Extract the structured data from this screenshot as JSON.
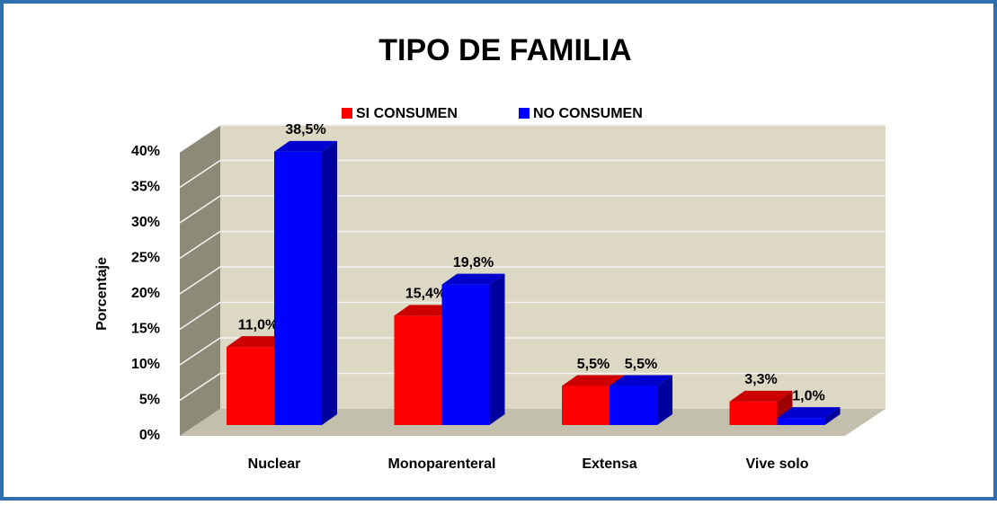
{
  "chart_data": {
    "type": "bar3d",
    "title": "TIPO DE FAMILIA",
    "y_label": "Porcentaje",
    "categories": [
      "Nuclear",
      "Monoparenteral",
      "Extensa",
      "Vive solo"
    ],
    "series": [
      {
        "name": "SI CONSUMEN",
        "color": "#ff0000",
        "values": [
          11.0,
          15.4,
          5.5,
          3.3
        ],
        "value_labels": [
          "11,0%",
          "15,4%",
          "5,5%",
          "3,3%"
        ]
      },
      {
        "name": "NO CONSUMEN",
        "color": "#0000ff",
        "values": [
          38.5,
          19.8,
          5.5,
          1.0
        ],
        "value_labels": [
          "38,5%",
          "19,8%",
          "5,5%",
          "1,0%"
        ]
      }
    ],
    "ylim": [
      0,
      40
    ],
    "yticks": [
      {
        "value": 0,
        "label": "0%"
      },
      {
        "value": 5,
        "label": "5%"
      },
      {
        "value": 10,
        "label": "10%"
      },
      {
        "value": 15,
        "label": "15%"
      },
      {
        "value": 20,
        "label": "20%"
      },
      {
        "value": 25,
        "label": "25%"
      },
      {
        "value": 30,
        "label": "30%"
      },
      {
        "value": 35,
        "label": "35%"
      },
      {
        "value": 40,
        "label": "40%"
      }
    ],
    "grid": true
  }
}
